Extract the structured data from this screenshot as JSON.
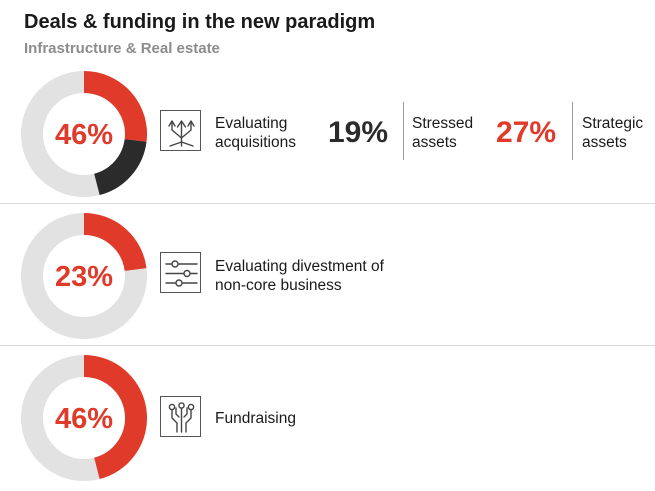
{
  "title": "Deals & funding in the new paradigm",
  "subtitle": "Infrastructure & Real estate",
  "colors": {
    "accent": "#e03a2b",
    "dark": "#2b2b2b",
    "track": "#e2e2e2",
    "muted": "#8c8c8c"
  },
  "rows": [
    {
      "icon": "branching-arrows-icon",
      "label": "Evaluating\nacquisitions"
    },
    {
      "icon": "sliders-icon",
      "label": "Evaluating divestment of\nnon-core business"
    },
    {
      "icon": "circuit-icon",
      "label": "Fundraising"
    }
  ],
  "stats": [
    {
      "value": "19%",
      "label": "Stressed\nassets",
      "color": "#2b2b2b"
    },
    {
      "value": "27%",
      "label": "Strategic\nassets",
      "color": "#e03a2b"
    }
  ],
  "chart_data": [
    {
      "type": "donut",
      "center_label": "46%",
      "segments": [
        {
          "value": 27,
          "color": "#e03a2b"
        },
        {
          "value": 19,
          "color": "#2b2b2b"
        }
      ],
      "remainder_color": "#e2e2e2"
    },
    {
      "type": "donut",
      "center_label": "23%",
      "segments": [
        {
          "value": 23,
          "color": "#e03a2b"
        }
      ],
      "remainder_color": "#e2e2e2"
    },
    {
      "type": "donut",
      "center_label": "46%",
      "segments": [
        {
          "value": 46,
          "color": "#e03a2b"
        }
      ],
      "remainder_color": "#e2e2e2"
    }
  ]
}
